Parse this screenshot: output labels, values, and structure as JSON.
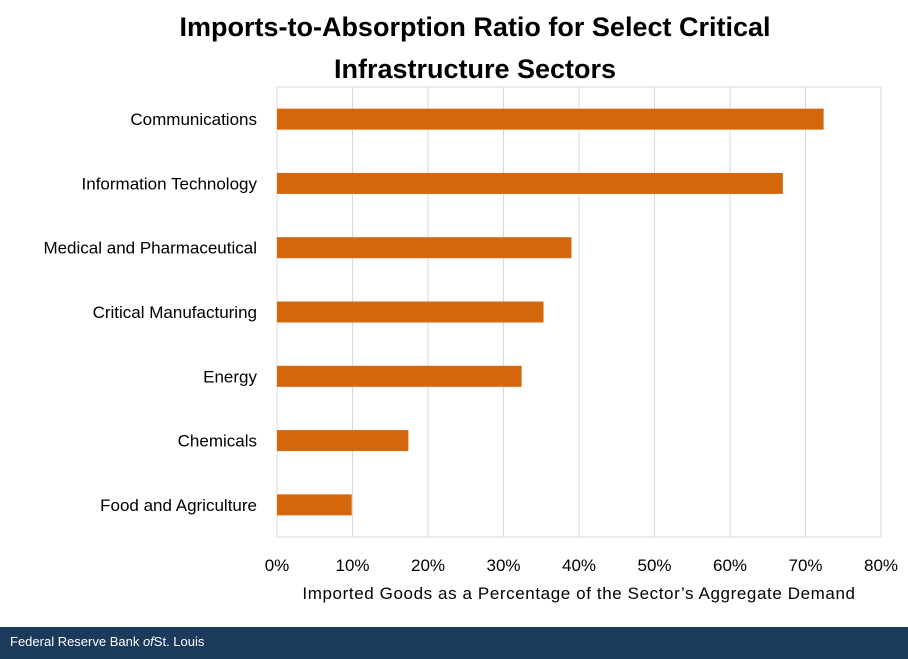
{
  "chart_data": {
    "type": "bar",
    "orientation": "horizontal",
    "title_lines": [
      "Imports-to-Absorption Ratio for Select Critical",
      "Infrastructure Sectors"
    ],
    "xlabel": "Imported Goods as a Percentage of the Sector’s Aggregate Demand",
    "ylabel": "",
    "categories": [
      "Communications",
      "Information Technology",
      "Medical and Pharmaceutical",
      "Critical Manufacturing",
      "Energy",
      "Chemicals",
      "Food and Agriculture"
    ],
    "values": [
      72.4,
      67.0,
      39.0,
      35.3,
      32.4,
      17.4,
      9.9
    ],
    "xlim": [
      0,
      80
    ],
    "xticks": [
      0,
      10,
      20,
      30,
      40,
      50,
      60,
      70,
      80
    ],
    "tick_suffix": "%",
    "grid": true,
    "legend": "none",
    "bar_color": "#d4670c"
  },
  "footer": {
    "before": "Federal Reserve Bank ",
    "of": "of",
    "after": "St. Louis"
  }
}
